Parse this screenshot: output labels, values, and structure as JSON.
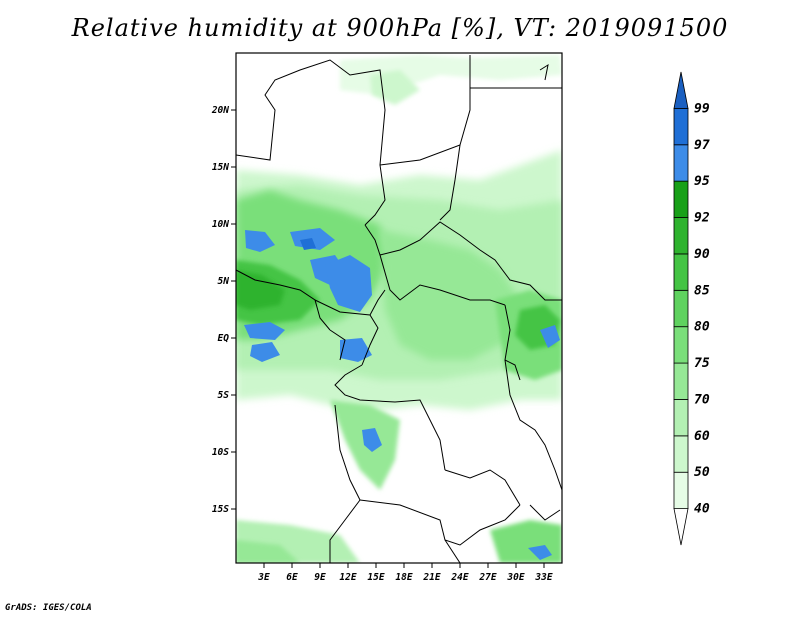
{
  "title": "Relative humidity at 900hPa [%], VT: 2019091500",
  "credit": "GrADS: IGES/COLA",
  "map": {
    "lat_labels": [
      "20N",
      "15N",
      "10N",
      "5N",
      "EQ",
      "5S",
      "10S",
      "15S"
    ],
    "lon_labels": [
      "3E",
      "6E",
      "9E",
      "12E",
      "15E",
      "18E",
      "21E",
      "24E",
      "27E",
      "30E",
      "33E"
    ]
  },
  "colorbar": {
    "levels": [
      "40",
      "50",
      "60",
      "70",
      "75",
      "80",
      "85",
      "90",
      "92",
      "95",
      "97",
      "99"
    ],
    "colors": [
      "#ffffff",
      "#e6fce6",
      "#cdf7cd",
      "#b3f0b3",
      "#96e896",
      "#7adf7a",
      "#5fd25f",
      "#44c444",
      "#2eb32e",
      "#18a018",
      "#3d8ce8",
      "#1f6fd6",
      "#1a5fc0"
    ]
  },
  "chart_data": {
    "type": "heatmap",
    "title": "Relative humidity at 900hPa [%], VT: 2019091500",
    "variable": "Relative humidity",
    "level": "900hPa",
    "units": "%",
    "valid_time": "2019091500",
    "lat_range": [
      "20S",
      "24N"
    ],
    "lon_range": [
      "0E",
      "35E"
    ],
    "contour_levels": [
      40,
      50,
      60,
      70,
      75,
      80,
      85,
      90,
      92,
      95,
      97,
      99
    ]
  }
}
